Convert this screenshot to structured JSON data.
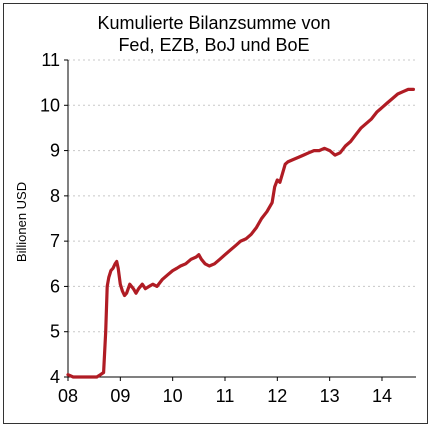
{
  "chart_data": {
    "type": "line",
    "title": [
      "Kumulierte Bilanzsumme von",
      "Fed, EZB, BoJ und BoE"
    ],
    "xlabel": "",
    "ylabel": "Billionen USD",
    "x_ticks": [
      "08",
      "09",
      "10",
      "11",
      "12",
      "13",
      "14"
    ],
    "y_ticks": [
      "4",
      "5",
      "6",
      "7",
      "8",
      "9",
      "10",
      "11"
    ],
    "xlim": [
      2008.0,
      2014.65
    ],
    "ylim": [
      4,
      11
    ],
    "grid": "horizontal-dotted",
    "series": [
      {
        "color": "#b01c24",
        "x": [
          2008.0,
          2008.1,
          2008.2,
          2008.4,
          2008.55,
          2008.62,
          2008.68,
          2008.72,
          2008.75,
          2008.78,
          2008.82,
          2008.86,
          2008.9,
          2008.93,
          2008.96,
          2009.0,
          2009.04,
          2009.08,
          2009.12,
          2009.18,
          2009.25,
          2009.3,
          2009.35,
          2009.42,
          2009.48,
          2009.55,
          2009.62,
          2009.7,
          2009.8,
          2009.9,
          2010.0,
          2010.08,
          2010.15,
          2010.25,
          2010.35,
          2010.45,
          2010.5,
          2010.55,
          2010.62,
          2010.7,
          2010.8,
          2010.9,
          2011.0,
          2011.1,
          2011.2,
          2011.3,
          2011.4,
          2011.5,
          2011.6,
          2011.7,
          2011.8,
          2011.9,
          2011.95,
          2012.0,
          2012.05,
          2012.1,
          2012.15,
          2012.2,
          2012.3,
          2012.4,
          2012.5,
          2012.6,
          2012.7,
          2012.8,
          2012.9,
          2013.0,
          2013.1,
          2013.2,
          2013.3,
          2013.4,
          2013.5,
          2013.6,
          2013.7,
          2013.8,
          2013.9,
          2014.0,
          2014.1,
          2014.2,
          2014.3,
          2014.4,
          2014.5,
          2014.6
        ],
        "values": [
          4.05,
          4.0,
          4.0,
          4.0,
          4.0,
          4.05,
          4.1,
          5.0,
          6.0,
          6.2,
          6.35,
          6.4,
          6.5,
          6.55,
          6.4,
          6.05,
          5.9,
          5.8,
          5.85,
          6.05,
          5.95,
          5.85,
          5.95,
          6.05,
          5.95,
          6.0,
          6.05,
          6.0,
          6.15,
          6.25,
          6.35,
          6.4,
          6.45,
          6.5,
          6.6,
          6.65,
          6.7,
          6.6,
          6.5,
          6.45,
          6.5,
          6.6,
          6.7,
          6.8,
          6.9,
          7.0,
          7.05,
          7.15,
          7.3,
          7.5,
          7.65,
          7.85,
          8.2,
          8.35,
          8.3,
          8.5,
          8.7,
          8.75,
          8.8,
          8.85,
          8.9,
          8.95,
          9.0,
          9.0,
          9.05,
          9.0,
          8.9,
          8.95,
          9.1,
          9.2,
          9.35,
          9.5,
          9.6,
          9.7,
          9.85,
          9.95,
          10.05,
          10.15,
          10.25,
          10.3,
          10.35,
          10.35
        ]
      }
    ]
  }
}
